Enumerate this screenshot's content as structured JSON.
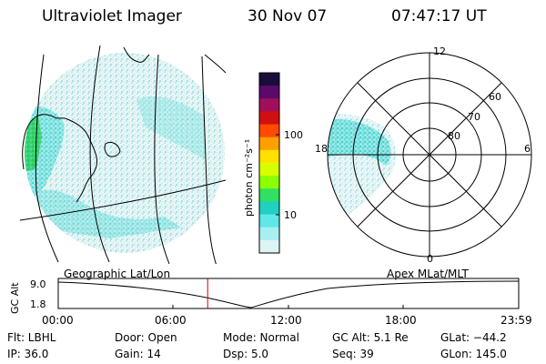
{
  "header": {
    "instrument": "Ultraviolet Imager",
    "date": "30 Nov 07",
    "time": "07:47:17 UT"
  },
  "colorbar": {
    "unit_label": "photon cm⁻²s⁻¹",
    "scale": "log",
    "ticks": [
      "100",
      "10"
    ],
    "colors": [
      "#1a0d3a",
      "#5a0a6a",
      "#a0105a",
      "#d01010",
      "#ff4a00",
      "#ffa000",
      "#ffe000",
      "#d8ff00",
      "#8cff00",
      "#30e060",
      "#20d0c0",
      "#60e8e8",
      "#a8f0f0",
      "#dcf4f4"
    ]
  },
  "geo_map": {
    "label": "Geographic Lat/Lon",
    "colors": {
      "land_highlight": "#28d070",
      "aurora": "#58d8d8",
      "faint": "#c8ecec"
    }
  },
  "polar_plot": {
    "label": "Apex MLat/MLT",
    "mlt_labels": {
      "top": "12",
      "left": "18",
      "right": "6",
      "bottom": "0"
    },
    "lat_labels": [
      "60",
      "70",
      "80"
    ]
  },
  "alt_plot": {
    "ylabel": "GC Alt",
    "yticks": [
      "9.0",
      "1.8"
    ],
    "xticks": [
      "00:00",
      "06:00",
      "12:00",
      "18:00",
      "23:59"
    ],
    "current_time_marker_hours": 7.79,
    "marker_color": "#cc0000"
  },
  "status": {
    "row1": {
      "filter": "Flt: LBHL",
      "door": "Door: Open",
      "mode": "Mode: Normal",
      "gc_alt": "GC Alt: 5.1 Re",
      "glat": "GLat: −44.2"
    },
    "row2": {
      "ip": "IP: 36.0",
      "gain": "Gain: 14",
      "dsp": "Dsp:   5.0",
      "seq": "Seq: 39",
      "glon": "GLon: 145.0"
    }
  }
}
